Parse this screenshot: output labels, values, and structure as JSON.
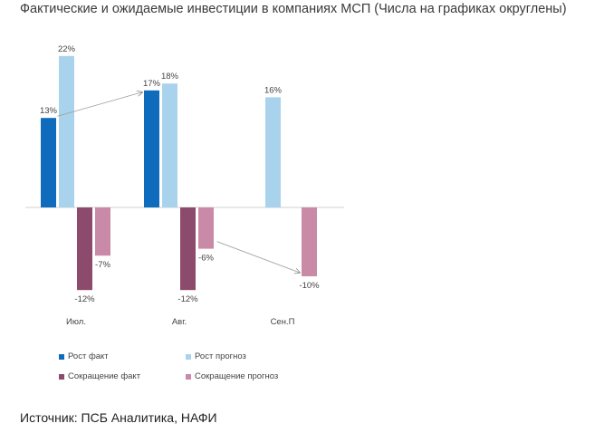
{
  "title": "Фактические и ожидаемые инвестиции в компаниях МСП (Числа на графиках округлены)",
  "source": "Источник: ПСБ Аналитика, НАФИ",
  "chart_data": {
    "type": "bar",
    "categories": [
      "Июл.",
      "Авг.",
      "Сен.П"
    ],
    "series": [
      {
        "name": "Рост факт",
        "color": "#0f6cbd",
        "values": [
          13,
          17,
          null
        ],
        "labels": [
          "13%",
          "17%",
          ""
        ]
      },
      {
        "name": "Рост прогноз",
        "color": "#a9d3ec",
        "values": [
          22,
          18,
          16
        ],
        "labels": [
          "22%",
          "18%",
          "16%"
        ]
      },
      {
        "name": "Сокращение факт",
        "color": "#8c4a6c",
        "values": [
          -12,
          -12,
          null
        ],
        "labels": [
          "-12%",
          "-12%",
          ""
        ]
      },
      {
        "name": "Сокращение прогноз",
        "color": "#c98aa8",
        "values": [
          -7,
          -6,
          -10
        ],
        "labels": [
          "-7%",
          "-6%",
          "-10%"
        ]
      }
    ],
    "ylim": [
      -16,
      24
    ],
    "grid": false,
    "legend_position": "bottom-left",
    "annotations": [
      {
        "type": "arrow",
        "from_series": 0,
        "from_category": 0,
        "to_series": 0,
        "to_category": 1
      },
      {
        "type": "arrow",
        "from_series": 3,
        "from_category": 1,
        "to_series": 3,
        "to_category": 2
      }
    ]
  }
}
